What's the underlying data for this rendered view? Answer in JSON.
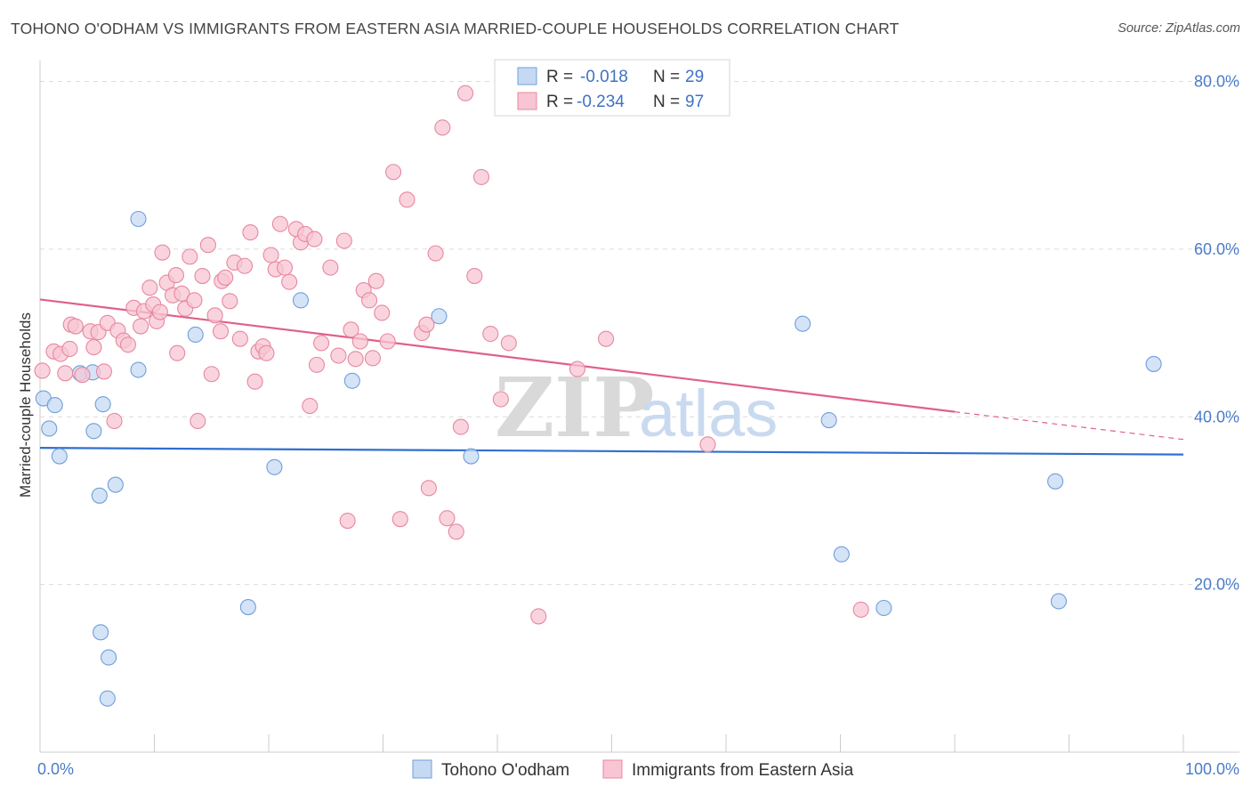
{
  "title": "TOHONO O'ODHAM VS IMMIGRANTS FROM EASTERN ASIA MARRIED-COUPLE HOUSEHOLDS CORRELATION CHART",
  "source": "Source: ZipAtlas.com",
  "watermark": {
    "zip": "ZIP",
    "atlas": "atlas"
  },
  "chart_data": {
    "type": "scatter",
    "ylabel": "Married-couple Households",
    "xlabel": "",
    "xlim": [
      0,
      100
    ],
    "ylim": [
      0,
      82
    ],
    "x_tick_labels": [
      {
        "value": 0,
        "label": "0.0%"
      },
      {
        "value": 100,
        "label": "100.0%"
      }
    ],
    "y_tick_labels": [
      {
        "value": 20,
        "label": "20.0%"
      },
      {
        "value": 40,
        "label": "40.0%"
      },
      {
        "value": 60,
        "label": "60.0%"
      },
      {
        "value": 80,
        "label": "80.0%"
      }
    ],
    "legend": {
      "placement": "top-center",
      "rows": [
        {
          "r_label": "R = ",
          "r_value": "-0.018",
          "n_label": "N = ",
          "n_value": "29"
        },
        {
          "r_label": "R = ",
          "r_value": "-0.234",
          "n_label": "N = ",
          "n_value": "97"
        }
      ]
    },
    "series": [
      {
        "name": "Tohono O'odham",
        "color": "#6f9fdc",
        "fill": "#c5d9f3",
        "trend": {
          "x0": 0,
          "y0": 36.3,
          "x1": 100,
          "y1": 35.5
        },
        "points": [
          [
            0.3,
            42.2
          ],
          [
            0.8,
            38.6
          ],
          [
            1.3,
            41.4
          ],
          [
            1.7,
            35.3
          ],
          [
            3.5,
            45.2
          ],
          [
            4.7,
            38.3
          ],
          [
            4.6,
            45.3
          ],
          [
            5.5,
            41.5
          ],
          [
            5.2,
            30.6
          ],
          [
            6.0,
            11.3
          ],
          [
            5.3,
            14.3
          ],
          [
            6.6,
            31.9
          ],
          [
            5.9,
            6.4
          ],
          [
            8.6,
            63.6
          ],
          [
            8.6,
            45.6
          ],
          [
            13.6,
            49.8
          ],
          [
            18.2,
            17.3
          ],
          [
            20.5,
            34.0
          ],
          [
            22.8,
            53.9
          ],
          [
            27.3,
            44.3
          ],
          [
            34.9,
            52.0
          ],
          [
            37.7,
            35.3
          ],
          [
            66.7,
            51.1
          ],
          [
            69.0,
            39.6
          ],
          [
            70.1,
            23.6
          ],
          [
            73.8,
            17.2
          ],
          [
            88.8,
            32.3
          ],
          [
            89.1,
            18.0
          ],
          [
            97.4,
            46.3
          ]
        ]
      },
      {
        "name": "Immigrants from Eastern Asia",
        "color": "#e8879f",
        "fill": "#f7c5d3",
        "trend": {
          "x0": 0,
          "y0": 54.0,
          "x1": 80,
          "y1": 40.6
        },
        "trend_dash": {
          "x0": 80,
          "y0": 40.6,
          "x1": 100,
          "y1": 37.3
        },
        "points": [
          [
            0.2,
            45.5
          ],
          [
            1.2,
            47.8
          ],
          [
            1.8,
            47.5
          ],
          [
            2.2,
            45.2
          ],
          [
            2.6,
            48.1
          ],
          [
            2.7,
            51.0
          ],
          [
            3.1,
            50.8
          ],
          [
            3.7,
            45.0
          ],
          [
            4.4,
            50.2
          ],
          [
            4.7,
            48.3
          ],
          [
            5.1,
            50.1
          ],
          [
            5.6,
            45.4
          ],
          [
            5.9,
            51.2
          ],
          [
            6.5,
            39.5
          ],
          [
            6.8,
            50.3
          ],
          [
            7.3,
            49.1
          ],
          [
            7.7,
            48.6
          ],
          [
            8.2,
            53.0
          ],
          [
            8.8,
            50.8
          ],
          [
            9.1,
            52.6
          ],
          [
            9.6,
            55.4
          ],
          [
            9.9,
            53.4
          ],
          [
            10.2,
            51.4
          ],
          [
            10.5,
            52.5
          ],
          [
            10.7,
            59.6
          ],
          [
            11.1,
            56.0
          ],
          [
            11.6,
            54.5
          ],
          [
            12.0,
            47.6
          ],
          [
            12.4,
            54.7
          ],
          [
            12.7,
            52.9
          ],
          [
            13.1,
            59.1
          ],
          [
            13.5,
            53.9
          ],
          [
            14.2,
            56.8
          ],
          [
            14.7,
            60.5
          ],
          [
            15.0,
            45.1
          ],
          [
            15.3,
            52.1
          ],
          [
            15.9,
            56.2
          ],
          [
            16.2,
            56.6
          ],
          [
            16.6,
            53.8
          ],
          [
            17.0,
            58.4
          ],
          [
            17.5,
            49.3
          ],
          [
            17.9,
            58.0
          ],
          [
            18.4,
            62.0
          ],
          [
            18.8,
            44.2
          ],
          [
            19.1,
            47.8
          ],
          [
            19.5,
            48.4
          ],
          [
            19.8,
            47.6
          ],
          [
            20.2,
            59.3
          ],
          [
            20.6,
            57.6
          ],
          [
            21.0,
            63.0
          ],
          [
            21.4,
            57.8
          ],
          [
            21.8,
            56.1
          ],
          [
            22.4,
            62.4
          ],
          [
            22.8,
            60.8
          ],
          [
            23.2,
            61.8
          ],
          [
            23.6,
            41.3
          ],
          [
            24.2,
            46.2
          ],
          [
            24.6,
            48.8
          ],
          [
            25.4,
            57.8
          ],
          [
            26.1,
            47.3
          ],
          [
            26.6,
            61.0
          ],
          [
            27.2,
            50.4
          ],
          [
            27.6,
            46.9
          ],
          [
            28.3,
            55.1
          ],
          [
            28.8,
            53.9
          ],
          [
            29.1,
            47.0
          ],
          [
            29.4,
            56.2
          ],
          [
            29.9,
            52.4
          ],
          [
            30.4,
            49.0
          ],
          [
            30.9,
            69.2
          ],
          [
            31.5,
            27.8
          ],
          [
            32.1,
            65.9
          ],
          [
            33.4,
            50.0
          ],
          [
            33.8,
            51.0
          ],
          [
            34.0,
            31.5
          ],
          [
            34.6,
            59.5
          ],
          [
            35.2,
            74.5
          ],
          [
            35.6,
            27.9
          ],
          [
            36.4,
            26.3
          ],
          [
            36.8,
            38.8
          ],
          [
            37.2,
            78.6
          ],
          [
            38.0,
            56.8
          ],
          [
            38.6,
            68.6
          ],
          [
            39.4,
            49.9
          ],
          [
            40.3,
            42.1
          ],
          [
            41.0,
            48.8
          ],
          [
            43.6,
            16.2
          ],
          [
            47.0,
            45.7
          ],
          [
            49.5,
            49.3
          ],
          [
            58.4,
            36.7
          ],
          [
            71.8,
            17.0
          ],
          [
            28.0,
            49.0
          ],
          [
            15.8,
            50.2
          ],
          [
            13.8,
            39.5
          ],
          [
            24.0,
            61.2
          ],
          [
            26.9,
            27.6
          ],
          [
            11.9,
            56.9
          ]
        ]
      }
    ]
  }
}
